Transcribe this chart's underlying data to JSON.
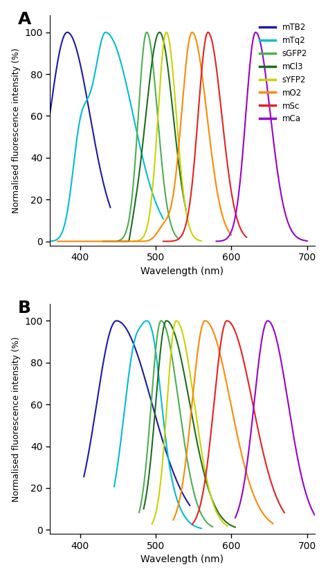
{
  "xlabel": "Wavelength (nm)",
  "ylabel": "Normalised fluorescence intensity (%)",
  "xlim": [
    360,
    710
  ],
  "ylim": [
    -2,
    108
  ],
  "xticks": [
    400,
    500,
    600,
    700
  ],
  "yticks": [
    0,
    20,
    40,
    60,
    80,
    100
  ],
  "proteins": [
    "mTB2",
    "mTq2",
    "sGFP2",
    "mCl3",
    "sYFP2",
    "mO2",
    "mSc",
    "mCa"
  ],
  "colors": {
    "mTB2": "#1a1aaa",
    "mTq2": "#00bcd4",
    "sGFP2": "#4caf50",
    "mCl3": "#1b6e1b",
    "sYFP2": "#c8d400",
    "mO2": "#ff8800",
    "mSc": "#e82020",
    "mCa": "#9900cc"
  }
}
